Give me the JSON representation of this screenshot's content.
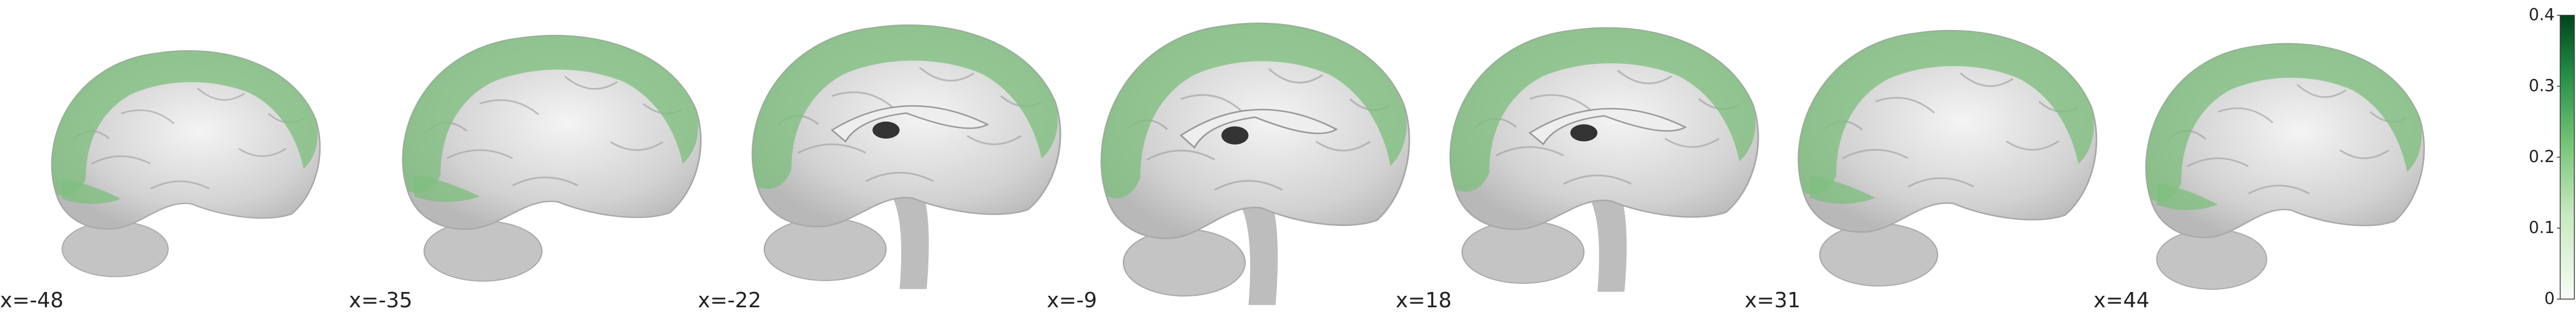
{
  "figure": {
    "overlay_color": "#7fbf7f",
    "background_brain": "grey-anatomical",
    "slices": [
      {
        "label": "x=-48",
        "view": "lateral"
      },
      {
        "label": "x=-35",
        "view": "lateral"
      },
      {
        "label": "x=-22",
        "view": "paramedian"
      },
      {
        "label": "x=-9",
        "view": "medial"
      },
      {
        "label": "x=18",
        "view": "paramedian"
      },
      {
        "label": "x=31",
        "view": "lateral"
      },
      {
        "label": "x=44",
        "view": "lateral"
      }
    ]
  },
  "colorbar": {
    "cmap": "greens",
    "color_low": "#f7fcf5",
    "color_high": "#00441b",
    "min": 0,
    "max": 0.4,
    "ticks": [
      "0",
      "0.1",
      "0.2",
      "0.3",
      "0.4"
    ]
  }
}
